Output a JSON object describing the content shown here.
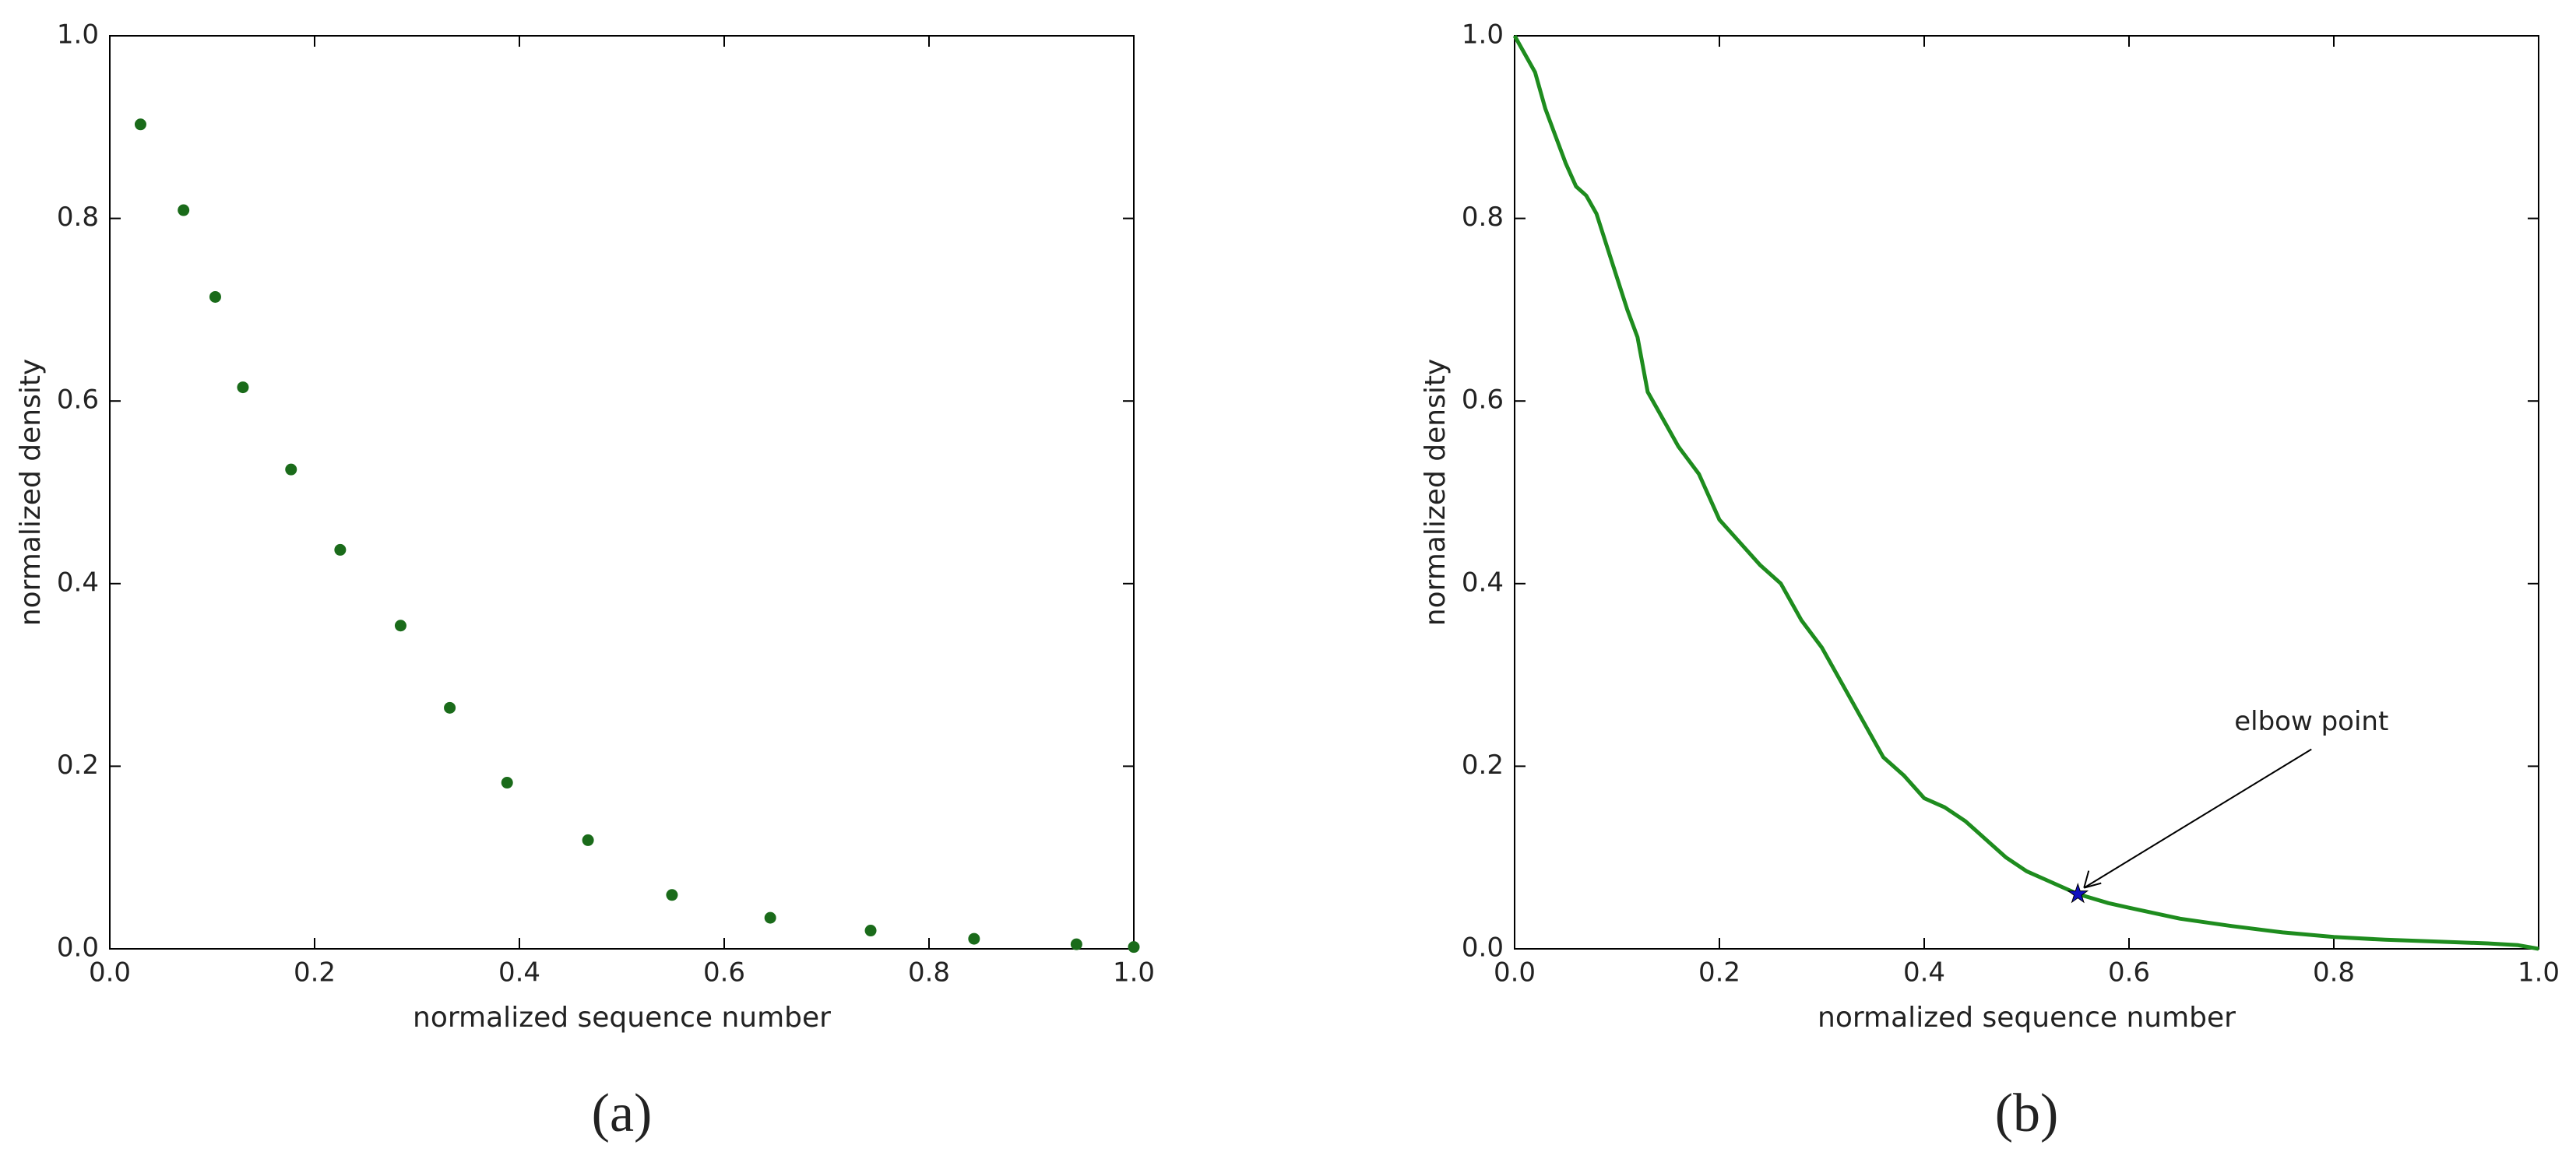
{
  "chart_data": [
    {
      "type": "scatter",
      "caption": "(a)",
      "xlabel": "normalized sequence number",
      "ylabel": "normalized density",
      "xlim": [
        0,
        1
      ],
      "ylim": [
        0,
        1
      ],
      "xticks": [
        {
          "value": 0,
          "label": "0.0"
        },
        0.2,
        0.4,
        0.6,
        0.8,
        {
          "value": 1,
          "label": "1.0"
        }
      ],
      "yticks": [
        {
          "value": 0,
          "label": "0.0"
        },
        0.2,
        0.4,
        0.6,
        0.8,
        {
          "value": 1,
          "label": "1.0"
        }
      ],
      "color": "#1a6b1a",
      "x": [
        0.03,
        0.072,
        0.103,
        0.13,
        0.177,
        0.225,
        0.284,
        0.332,
        0.388,
        0.467,
        0.549,
        0.645,
        0.743,
        0.844,
        0.944,
        1.0
      ],
      "values": [
        0.903,
        0.809,
        0.714,
        0.615,
        0.525,
        0.437,
        0.354,
        0.264,
        0.182,
        0.119,
        0.059,
        0.034,
        0.02,
        0.011,
        0.005,
        0.002
      ]
    },
    {
      "type": "line",
      "caption": "(b)",
      "xlabel": "normalized sequence number",
      "ylabel": "normalized density",
      "xlim": [
        0,
        1
      ],
      "ylim": [
        0,
        1
      ],
      "xticks": [
        {
          "value": 0,
          "label": "0.0"
        },
        0.2,
        0.4,
        0.6,
        0.8,
        {
          "value": 1,
          "label": "1.0"
        }
      ],
      "yticks": [
        {
          "value": 0,
          "label": "0.0"
        },
        0.2,
        0.4,
        0.6,
        0.8,
        {
          "value": 1,
          "label": "1.0"
        }
      ],
      "color": "#1e8c1e",
      "x": [
        0,
        0.01,
        0.02,
        0.03,
        0.04,
        0.05,
        0.06,
        0.07,
        0.08,
        0.09,
        0.1,
        0.11,
        0.12,
        0.13,
        0.14,
        0.15,
        0.16,
        0.18,
        0.2,
        0.22,
        0.24,
        0.26,
        0.28,
        0.3,
        0.32,
        0.34,
        0.36,
        0.38,
        0.4,
        0.42,
        0.44,
        0.46,
        0.48,
        0.5,
        0.52,
        0.55,
        0.58,
        0.6,
        0.65,
        0.7,
        0.75,
        0.8,
        0.85,
        0.9,
        0.95,
        0.98,
        1.0
      ],
      "values": [
        1.0,
        0.98,
        0.96,
        0.92,
        0.89,
        0.86,
        0.835,
        0.825,
        0.805,
        0.77,
        0.735,
        0.7,
        0.67,
        0.61,
        0.59,
        0.57,
        0.55,
        0.52,
        0.47,
        0.445,
        0.42,
        0.4,
        0.36,
        0.33,
        0.29,
        0.25,
        0.21,
        0.19,
        0.165,
        0.155,
        0.14,
        0.12,
        0.1,
        0.085,
        0.075,
        0.06,
        0.05,
        0.045,
        0.033,
        0.025,
        0.018,
        0.013,
        0.01,
        0.008,
        0.006,
        0.004,
        0.0
      ],
      "marker": {
        "x": 0.55,
        "y": 0.06,
        "color": "#1010c0"
      },
      "annotation": {
        "text": "elbow point",
        "x": 0.55,
        "y": 0.06
      }
    }
  ]
}
